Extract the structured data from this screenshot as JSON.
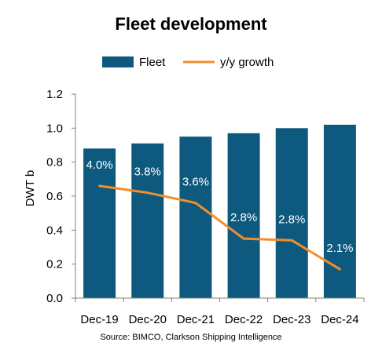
{
  "chart_data": {
    "type": "bar",
    "title": "Fleet development",
    "categories": [
      "Dec-19",
      "Dec-20",
      "Dec-21",
      "Dec-22",
      "Dec-23",
      "Dec-24"
    ],
    "series": [
      {
        "name": "Fleet",
        "type": "bar",
        "axis": "left",
        "color": "#0e5a7e",
        "values": [
          0.88,
          0.91,
          0.95,
          0.97,
          1.0,
          1.02
        ]
      },
      {
        "name": "y/y growth",
        "type": "line",
        "axis": "right",
        "color": "#f28e2b",
        "values": [
          4.0,
          3.8,
          3.6,
          2.8,
          2.8,
          2.1
        ],
        "labels": [
          "4.0%",
          "3.8%",
          "3.6%",
          "2.8%",
          "2.8%",
          "2.1%"
        ],
        "plotted_levels": [
          0.66,
          0.62,
          0.56,
          0.35,
          0.34,
          0.17
        ]
      }
    ],
    "ylabel": "DWT b",
    "ylim": [
      0,
      1.2
    ],
    "yticks": [
      "0.0",
      "0.2",
      "0.4",
      "0.6",
      "0.8",
      "1.0",
      "1.2"
    ],
    "legend_position": "top",
    "grid": false,
    "source": "Source: BIMCO, Clarkson Shipping Intelligence"
  }
}
